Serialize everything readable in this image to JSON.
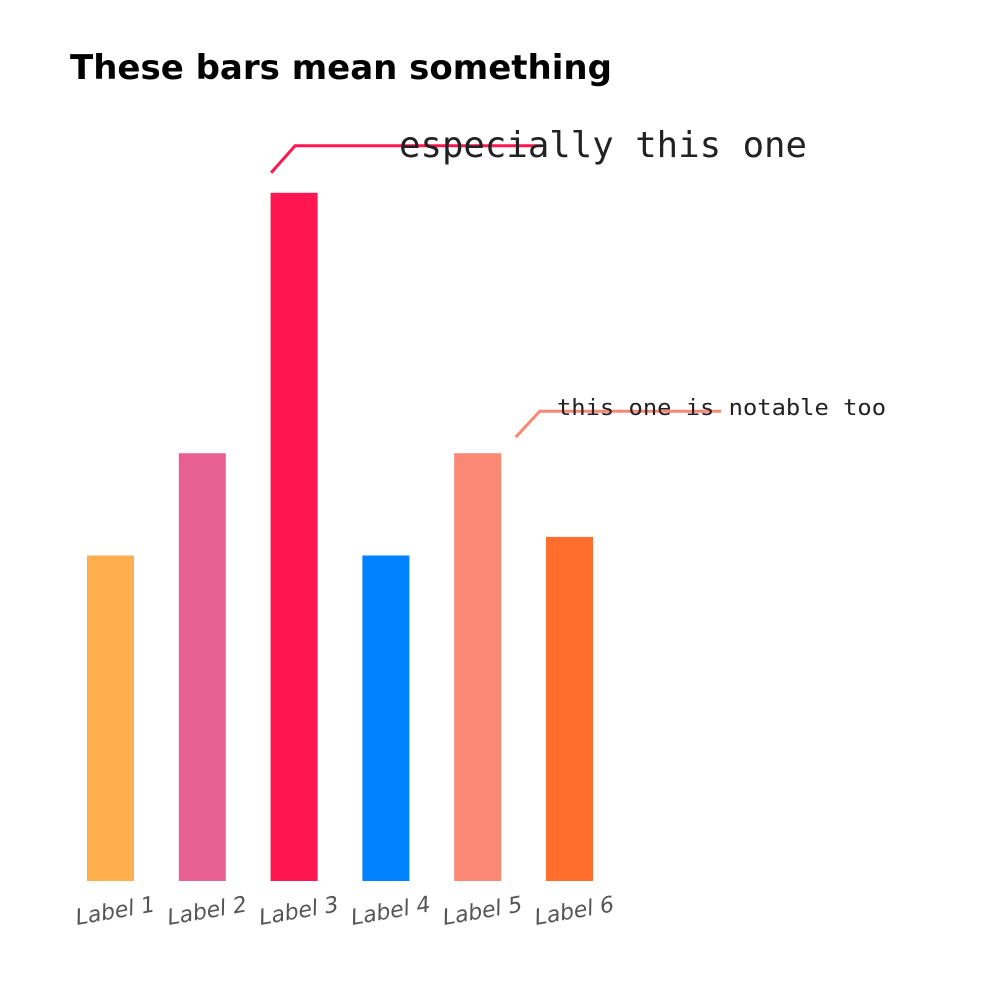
{
  "chart_data": {
    "type": "bar",
    "title": "These bars mean something",
    "categories": [
      "Label 1",
      "Label 2",
      "Label 3",
      "Label 4",
      "Label 5",
      "Label 6"
    ],
    "values": [
      35,
      46,
      74,
      35,
      46,
      37
    ],
    "colors": [
      "#ffaf4e",
      "#e96191",
      "#ff1550",
      "#0082ff",
      "#fa8874",
      "#ff6e2c"
    ],
    "ylim": [
      0,
      80
    ],
    "grid": false,
    "xlabel": "",
    "ylabel": "",
    "annotations": [
      {
        "text": "especially this one",
        "target_category": "Label 3",
        "color": "#ff1550"
      },
      {
        "text": "this one is notable too",
        "target_category": "Label 5",
        "color": "#fa8874"
      }
    ]
  }
}
